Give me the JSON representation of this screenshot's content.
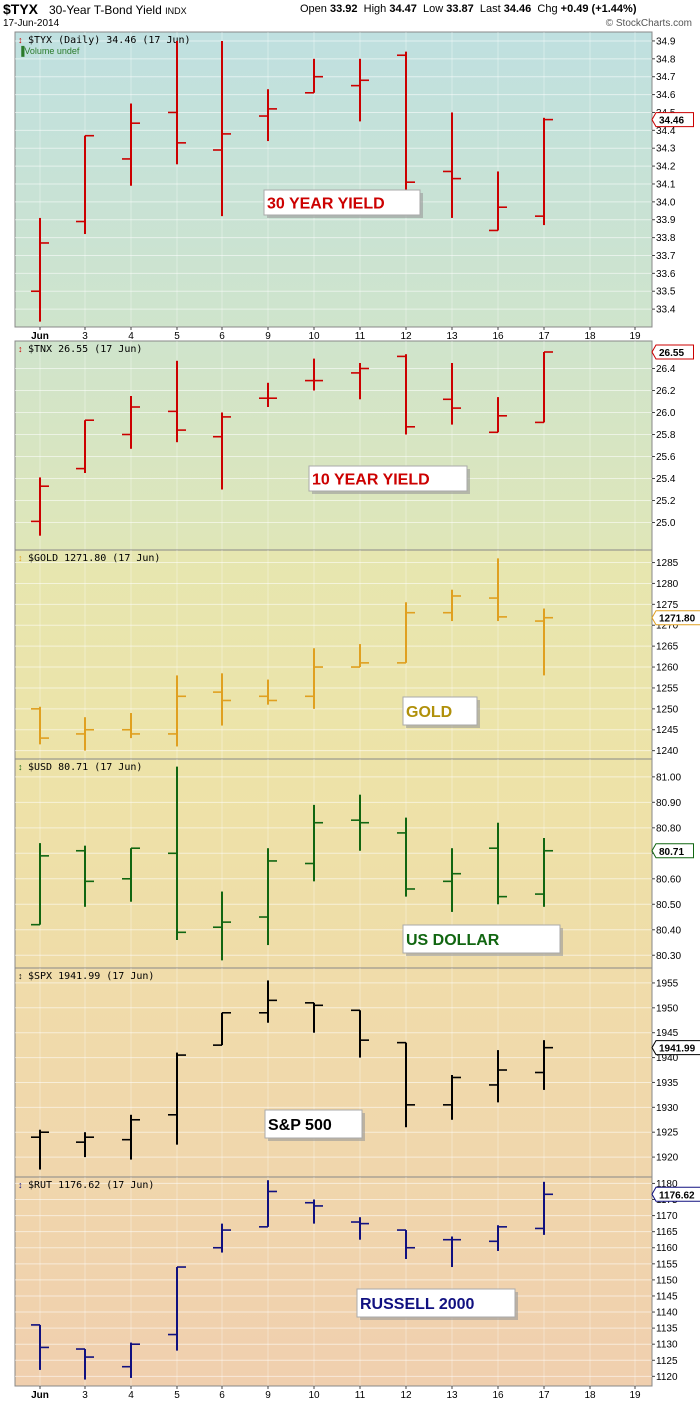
{
  "header": {
    "symbol": "$TYX",
    "name": "30-Year T-Bond Yield",
    "exchange": "INDX",
    "date": "17-Jun-2014",
    "open_label": "Open",
    "open": "33.92",
    "high_label": "High",
    "high": "34.47",
    "low_label": "Low",
    "low": "33.87",
    "last_label": "Last",
    "last": "34.46",
    "chg_label": "Chg",
    "chg": "+0.49 (+1.44%)",
    "credit": "© StockCharts.com"
  },
  "x_axis": {
    "labels": [
      "Jun",
      "3",
      "4",
      "5",
      "6",
      "9",
      "10",
      "11",
      "12",
      "13",
      "16",
      "17",
      "18",
      "19"
    ]
  },
  "chart_data": [
    {
      "type": "ohlc",
      "legend": "$TYX (Daily) 34.46 (17 Jun)",
      "sublegend": "Volume undef",
      "annotation": "30 YEAR YIELD",
      "last_label": "34.46",
      "last_value": 34.46,
      "color": "#cc0000",
      "ylim": [
        33.3,
        34.95
      ],
      "yticks": [
        33.4,
        33.5,
        33.6,
        33.7,
        33.8,
        33.9,
        34.0,
        34.1,
        34.2,
        34.3,
        34.4,
        34.5,
        34.6,
        34.7,
        34.8,
        34.9
      ],
      "ytick_labels": [
        "33.4",
        "33.5",
        "33.6",
        "33.7",
        "33.8",
        "33.9",
        "34.0",
        "34.1",
        "34.2",
        "34.3",
        "34.4",
        "34.5",
        "34.6",
        "34.7",
        "34.8",
        "34.9"
      ],
      "bars": [
        {
          "o": 33.5,
          "h": 33.91,
          "l": 33.33,
          "c": 33.77
        },
        {
          "o": 33.89,
          "h": 34.37,
          "l": 33.82,
          "c": 34.37
        },
        {
          "o": 34.24,
          "h": 34.55,
          "l": 34.09,
          "c": 34.44
        },
        {
          "o": 34.5,
          "h": 34.9,
          "l": 34.21,
          "c": 34.33
        },
        {
          "o": 34.29,
          "h": 34.9,
          "l": 33.92,
          "c": 34.38
        },
        {
          "o": 34.48,
          "h": 34.63,
          "l": 34.34,
          "c": 34.52
        },
        {
          "o": 34.61,
          "h": 34.8,
          "l": 34.61,
          "c": 34.7
        },
        {
          "o": 34.65,
          "h": 34.8,
          "l": 34.45,
          "c": 34.68
        },
        {
          "o": 34.82,
          "h": 34.84,
          "l": 34.05,
          "c": 34.11
        },
        {
          "o": 34.17,
          "h": 34.5,
          "l": 33.91,
          "c": 34.13
        },
        {
          "o": 33.84,
          "h": 34.17,
          "l": 33.84,
          "c": 33.97
        },
        {
          "o": 33.92,
          "h": 34.47,
          "l": 33.87,
          "c": 34.46
        }
      ]
    },
    {
      "type": "ohlc",
      "legend": "$TNX 26.55 (17 Jun)",
      "annotation": "10 YEAR YIELD",
      "last_label": "26.55",
      "last_value": 26.55,
      "color": "#cc0000",
      "ylim": [
        24.75,
        26.65
      ],
      "yticks": [
        25.0,
        25.2,
        25.4,
        25.6,
        25.8,
        26.0,
        26.2,
        26.4
      ],
      "ytick_labels": [
        "25.0",
        "25.2",
        "25.4",
        "25.6",
        "25.8",
        "26.0",
        "26.2",
        "26.4"
      ],
      "bars": [
        {
          "o": 25.01,
          "h": 25.41,
          "l": 24.88,
          "c": 25.33
        },
        {
          "o": 25.49,
          "h": 25.93,
          "l": 25.45,
          "c": 25.93
        },
        {
          "o": 25.8,
          "h": 26.15,
          "l": 25.67,
          "c": 26.05
        },
        {
          "o": 26.01,
          "h": 26.47,
          "l": 25.73,
          "c": 25.84
        },
        {
          "o": 25.78,
          "h": 26.0,
          "l": 25.3,
          "c": 25.96
        },
        {
          "o": 26.13,
          "h": 26.27,
          "l": 26.05,
          "c": 26.13
        },
        {
          "o": 26.29,
          "h": 26.49,
          "l": 26.2,
          "c": 26.29
        },
        {
          "o": 26.36,
          "h": 26.45,
          "l": 26.12,
          "c": 26.4
        },
        {
          "o": 26.51,
          "h": 26.53,
          "l": 25.8,
          "c": 25.87
        },
        {
          "o": 26.12,
          "h": 26.45,
          "l": 25.89,
          "c": 26.04
        },
        {
          "o": 25.82,
          "h": 26.14,
          "l": 25.82,
          "c": 25.97
        },
        {
          "o": 25.91,
          "h": 26.55,
          "l": 25.91,
          "c": 26.55
        }
      ]
    },
    {
      "type": "ohlc",
      "legend": "$GOLD 1271.80 (17 Jun)",
      "annotation": "GOLD",
      "last_label": "1271.80",
      "last_value": 1271.8,
      "color": "#e0a020",
      "ylim": [
        1238,
        1288
      ],
      "yticks": [
        1240,
        1245,
        1250,
        1255,
        1260,
        1265,
        1270,
        1275,
        1280,
        1285
      ],
      "ytick_labels": [
        "1240",
        "1245",
        "1250",
        "1255",
        "1260",
        "1265",
        "1270",
        "1275",
        "1280",
        "1285"
      ],
      "bars": [
        {
          "o": 1250.0,
          "h": 1250.5,
          "l": 1241.5,
          "c": 1243.0
        },
        {
          "o": 1244.0,
          "h": 1248.0,
          "l": 1240.0,
          "c": 1245.0
        },
        {
          "o": 1245.0,
          "h": 1249.0,
          "l": 1243.0,
          "c": 1244.0
        },
        {
          "o": 1244.0,
          "h": 1258.0,
          "l": 1241.0,
          "c": 1253.0
        },
        {
          "o": 1254.0,
          "h": 1258.5,
          "l": 1246.0,
          "c": 1252.0
        },
        {
          "o": 1253.0,
          "h": 1257.0,
          "l": 1251.0,
          "c": 1252.0
        },
        {
          "o": 1253.0,
          "h": 1264.5,
          "l": 1250.0,
          "c": 1260.0
        },
        {
          "o": 1260.0,
          "h": 1265.5,
          "l": 1260.0,
          "c": 1261.0
        },
        {
          "o": 1261.0,
          "h": 1275.5,
          "l": 1261.0,
          "c": 1273.0
        },
        {
          "o": 1273.0,
          "h": 1278.5,
          "l": 1271.0,
          "c": 1277.0
        },
        {
          "o": 1276.5,
          "h": 1286.0,
          "l": 1271.0,
          "c": 1272.0
        },
        {
          "o": 1271.0,
          "h": 1274.0,
          "l": 1258.0,
          "c": 1271.8
        }
      ]
    },
    {
      "type": "ohlc",
      "legend": "$USD 80.71 (17 Jun)",
      "annotation": "US DOLLAR",
      "last_label": "80.71",
      "last_value": 80.71,
      "color": "#116611",
      "ylim": [
        80.25,
        81.07
      ],
      "yticks": [
        80.3,
        80.4,
        80.5,
        80.6,
        80.7,
        80.8,
        80.9,
        81.0
      ],
      "ytick_labels": [
        "80.30",
        "80.40",
        "80.50",
        "80.60",
        "80.70",
        "80.80",
        "80.90",
        "81.00"
      ],
      "bars": [
        {
          "o": 80.42,
          "h": 80.74,
          "l": 80.42,
          "c": 80.69
        },
        {
          "o": 80.71,
          "h": 80.73,
          "l": 80.49,
          "c": 80.59
        },
        {
          "o": 80.6,
          "h": 80.72,
          "l": 80.51,
          "c": 80.72
        },
        {
          "o": 80.7,
          "h": 81.04,
          "l": 80.36,
          "c": 80.39
        },
        {
          "o": 80.41,
          "h": 80.55,
          "l": 80.28,
          "c": 80.43
        },
        {
          "o": 80.45,
          "h": 80.72,
          "l": 80.34,
          "c": 80.67
        },
        {
          "o": 80.66,
          "h": 80.89,
          "l": 80.59,
          "c": 80.82
        },
        {
          "o": 80.83,
          "h": 80.93,
          "l": 80.71,
          "c": 80.82
        },
        {
          "o": 80.78,
          "h": 80.84,
          "l": 80.53,
          "c": 80.56
        },
        {
          "o": 80.59,
          "h": 80.72,
          "l": 80.47,
          "c": 80.62
        },
        {
          "o": 80.72,
          "h": 80.82,
          "l": 80.5,
          "c": 80.53
        },
        {
          "o": 80.54,
          "h": 80.76,
          "l": 80.49,
          "c": 80.71
        }
      ]
    },
    {
      "type": "ohlc",
      "legend": "$SPX 1941.99 (17 Jun)",
      "annotation": "S&P 500",
      "last_label": "1941.99",
      "last_value": 1941.99,
      "color": "#000000",
      "ylim": [
        1916,
        1958
      ],
      "yticks": [
        1920,
        1925,
        1930,
        1935,
        1940,
        1945,
        1950,
        1955
      ],
      "ytick_labels": [
        "1920",
        "1925",
        "1930",
        "1935",
        "1940",
        "1945",
        "1950",
        "1955"
      ],
      "bars": [
        {
          "o": 1924.0,
          "h": 1925.5,
          "l": 1917.5,
          "c": 1925.0
        },
        {
          "o": 1923.0,
          "h": 1925.0,
          "l": 1920.0,
          "c": 1924.0
        },
        {
          "o": 1923.5,
          "h": 1928.5,
          "l": 1919.5,
          "c": 1927.5
        },
        {
          "o": 1928.5,
          "h": 1941.0,
          "l": 1922.5,
          "c": 1940.5
        },
        {
          "o": 1942.5,
          "h": 1949.0,
          "l": 1942.5,
          "c": 1949.0
        },
        {
          "o": 1949.0,
          "h": 1955.5,
          "l": 1947.0,
          "c": 1951.5
        },
        {
          "o": 1951.0,
          "h": 1951.0,
          "l": 1945.0,
          "c": 1950.5
        },
        {
          "o": 1949.5,
          "h": 1949.5,
          "l": 1940.0,
          "c": 1943.5
        },
        {
          "o": 1943.0,
          "h": 1943.0,
          "l": 1926.0,
          "c": 1930.5
        },
        {
          "o": 1930.5,
          "h": 1936.5,
          "l": 1927.5,
          "c": 1936.0
        },
        {
          "o": 1934.5,
          "h": 1941.5,
          "l": 1931.0,
          "c": 1937.5
        },
        {
          "o": 1937.0,
          "h": 1943.5,
          "l": 1933.5,
          "c": 1941.99
        }
      ]
    },
    {
      "type": "ohlc",
      "legend": "$RUT 1176.62 (17 Jun)",
      "annotation": "RUSSELL 2000",
      "last_label": "1176.62",
      "last_value": 1176.62,
      "color": "#101080",
      "ylim": [
        1117,
        1182
      ],
      "yticks": [
        1120,
        1125,
        1130,
        1135,
        1140,
        1145,
        1150,
        1155,
        1160,
        1165,
        1170,
        1175,
        1180
      ],
      "ytick_labels": [
        "1120",
        "1125",
        "1130",
        "1135",
        "1140",
        "1145",
        "1150",
        "1155",
        "1160",
        "1165",
        "1170",
        "1175",
        "1180"
      ],
      "bars": [
        {
          "o": 1136.0,
          "h": 1136.0,
          "l": 1122.0,
          "c": 1129.0
        },
        {
          "o": 1128.5,
          "h": 1128.5,
          "l": 1119.0,
          "c": 1126.0
        },
        {
          "o": 1123.0,
          "h": 1130.5,
          "l": 1119.5,
          "c": 1130.0
        },
        {
          "o": 1133.0,
          "h": 1154.0,
          "l": 1128.0,
          "c": 1154.0
        },
        {
          "o": 1160.0,
          "h": 1167.5,
          "l": 1158.5,
          "c": 1165.5
        },
        {
          "o": 1166.5,
          "h": 1181.0,
          "l": 1166.5,
          "c": 1177.5
        },
        {
          "o": 1174.0,
          "h": 1175.0,
          "l": 1167.5,
          "c": 1173.0
        },
        {
          "o": 1168.0,
          "h": 1169.5,
          "l": 1162.5,
          "c": 1167.5
        },
        {
          "o": 1165.5,
          "h": 1165.5,
          "l": 1156.5,
          "c": 1160.0
        },
        {
          "o": 1162.5,
          "h": 1163.5,
          "l": 1154.0,
          "c": 1162.5
        },
        {
          "o": 1162.0,
          "h": 1167.0,
          "l": 1159.0,
          "c": 1166.5
        },
        {
          "o": 1166.0,
          "h": 1180.5,
          "l": 1164.0,
          "c": 1176.62
        }
      ]
    }
  ]
}
